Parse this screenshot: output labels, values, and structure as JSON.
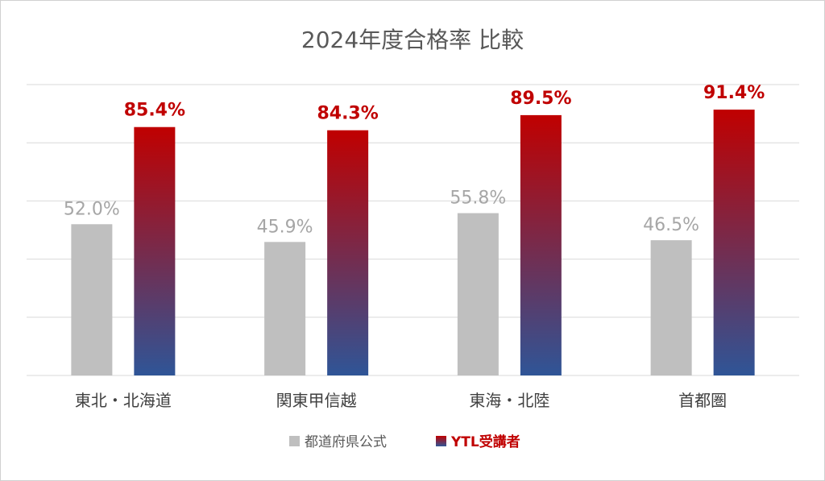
{
  "chart_data": {
    "type": "bar",
    "title": "2024年度合格率 比較",
    "categories": [
      "東北・北海道",
      "関東甲信越",
      "東海・北陸",
      "首都圏"
    ],
    "series": [
      {
        "name": "都道府県公式",
        "values": [
          52.0,
          45.9,
          55.8,
          46.5
        ],
        "labels": [
          "52.0%",
          "45.9%",
          "55.8%",
          "46.5%"
        ],
        "color": "#bfbfbf"
      },
      {
        "name": "YTL受講者",
        "values": [
          85.4,
          84.3,
          89.5,
          91.4
        ],
        "labels": [
          "85.4%",
          "84.3%",
          "89.5%",
          "91.4%"
        ],
        "color_top": "#c00000",
        "color_bottom": "#2f5597"
      }
    ],
    "ylim": [
      0,
      100
    ],
    "grid": true,
    "legend_position": "bottom"
  }
}
